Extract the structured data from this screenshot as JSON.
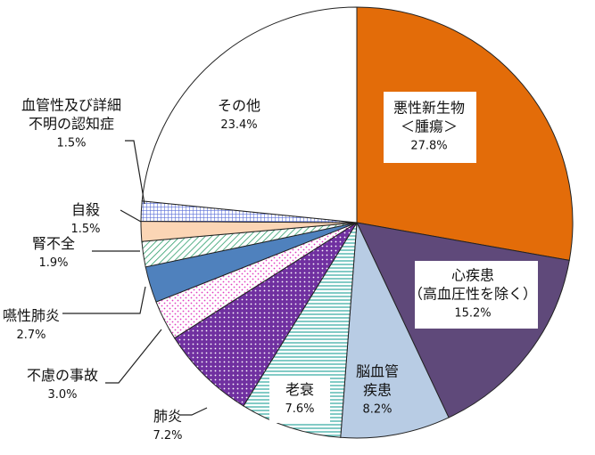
{
  "chart_data": {
    "type": "pie",
    "title": "",
    "start": "12 o'clock",
    "direction": "clockwise",
    "slices": [
      {
        "label": "悪性新生物\n＜腫瘍＞",
        "value": 27.8,
        "value_label": "27.8%",
        "color": "#E36C09",
        "pattern": "solid",
        "label_box": true
      },
      {
        "label": "心疾患\n（高血圧性を除く）",
        "value": 15.2,
        "value_label": "15.2%",
        "color": "#5F497A",
        "pattern": "solid",
        "label_box": true
      },
      {
        "label": "脳血管\n疾患",
        "value": 8.2,
        "value_label": "8.2%",
        "color": "#B8CCE4",
        "pattern": "solid",
        "label_box": false
      },
      {
        "label": "老衰",
        "value": 7.6,
        "value_label": "7.6%",
        "color": "#31A9A0",
        "pattern": "horizontal-lines",
        "label_box": true
      },
      {
        "label": "肺炎",
        "value": 7.2,
        "value_label": "7.2%",
        "color": "#7030A0",
        "pattern": "dots-light-on-dark",
        "label_box": false
      },
      {
        "label": "不慮の事故",
        "value": 3.0,
        "value_label": "3.0%",
        "color": "#E040C0",
        "pattern": "sparse-dots",
        "label_box": false
      },
      {
        "label": "嚥性肺炎",
        "value": 2.7,
        "value_label": "2.7%",
        "color": "#4F81BD",
        "pattern": "solid",
        "label_box": false
      },
      {
        "label": "腎不全",
        "value": 1.9,
        "value_label": "1.9%",
        "color": "#2E9E6B",
        "pattern": "diagonal-lines",
        "label_box": false
      },
      {
        "label": "自殺",
        "value": 1.5,
        "value_label": "1.5%",
        "color": "#FBD5B5",
        "pattern": "solid",
        "label_box": false
      },
      {
        "label": "血管性及び詳細\n不明の認知症",
        "value": 1.5,
        "value_label": "1.5%",
        "color": "#5B6FD8",
        "pattern": "grid",
        "label_box": false
      },
      {
        "label": "その他",
        "value": 23.4,
        "value_label": "23.4%",
        "color": "#FFFFFF",
        "pattern": "solid",
        "label_box": false
      }
    ]
  }
}
